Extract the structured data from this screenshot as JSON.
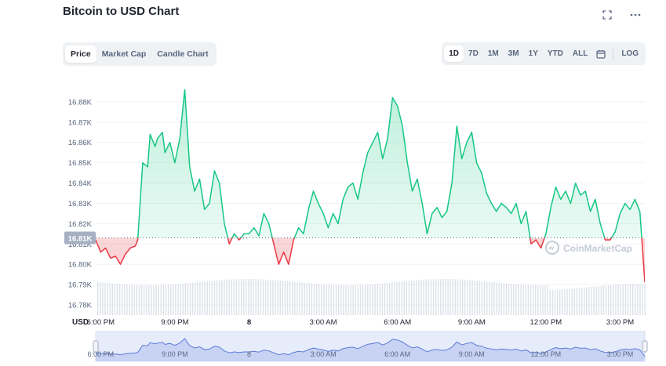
{
  "header": {
    "title": "Bitcoin to USD Chart"
  },
  "icons": {
    "fullscreen": "fullscreen-icon",
    "more": "more-icon",
    "calendar": "calendar-icon"
  },
  "chart_types": {
    "tabs": [
      {
        "label": "Price",
        "active": true
      },
      {
        "label": "Market Cap",
        "active": false
      },
      {
        "label": "Candle Chart",
        "active": false
      }
    ]
  },
  "ranges": {
    "tabs": [
      {
        "label": "1D",
        "active": true
      },
      {
        "label": "7D",
        "active": false
      },
      {
        "label": "1M",
        "active": false
      },
      {
        "label": "3M",
        "active": false
      },
      {
        "label": "1Y",
        "active": false
      },
      {
        "label": "YTD",
        "active": false
      },
      {
        "label": "ALL",
        "active": false
      }
    ],
    "log_label": "LOG"
  },
  "colors": {
    "up": "#16c784",
    "down": "#ea3943",
    "grid": "#eff2f5",
    "navigator": "#5b7ad8"
  },
  "watermark": "CoinMarketCap",
  "chart_data": {
    "type": "area",
    "title": "Bitcoin to USD Chart",
    "currency_label": "USD",
    "current_price_label": "16.81K",
    "reference_value": 16.813,
    "ylim": [
      16.775,
      16.89
    ],
    "y_ticks": [
      {
        "value": 16.88,
        "label": "16.88K"
      },
      {
        "value": 16.87,
        "label": "16.87K"
      },
      {
        "value": 16.86,
        "label": "16.86K"
      },
      {
        "value": 16.85,
        "label": "16.85K"
      },
      {
        "value": 16.84,
        "label": "16.84K"
      },
      {
        "value": 16.83,
        "label": "16.83K"
      },
      {
        "value": 16.82,
        "label": "16.82K"
      },
      {
        "value": 16.81,
        "label": "16.81K"
      },
      {
        "value": 16.8,
        "label": "16.80K"
      },
      {
        "value": 16.79,
        "label": "16.79K"
      },
      {
        "value": 16.78,
        "label": "16.78K"
      }
    ],
    "x_range": [
      17.8,
      40.0
    ],
    "x_ticks": [
      {
        "value": 18,
        "label": "6:00 PM"
      },
      {
        "value": 21,
        "label": "9:00 PM"
      },
      {
        "value": 24,
        "label": "8",
        "bold": true
      },
      {
        "value": 27,
        "label": "3:00 AM"
      },
      {
        "value": 30,
        "label": "6:00 AM"
      },
      {
        "value": 33,
        "label": "9:00 AM"
      },
      {
        "value": 36,
        "label": "12:00 PM"
      },
      {
        "value": 39,
        "label": "3:00 PM"
      }
    ],
    "series": [
      {
        "values": [
          [
            17.8,
            16.812
          ],
          [
            18.0,
            16.806
          ],
          [
            18.2,
            16.808
          ],
          [
            18.4,
            16.803
          ],
          [
            18.6,
            16.804
          ],
          [
            18.8,
            16.8
          ],
          [
            19.0,
            16.805
          ],
          [
            19.2,
            16.808
          ],
          [
            19.4,
            16.809
          ],
          [
            19.5,
            16.812
          ],
          [
            19.7,
            16.85
          ],
          [
            19.9,
            16.848
          ],
          [
            20.0,
            16.864
          ],
          [
            20.2,
            16.858
          ],
          [
            20.3,
            16.862
          ],
          [
            20.5,
            16.865
          ],
          [
            20.6,
            16.855
          ],
          [
            20.8,
            16.86
          ],
          [
            21.0,
            16.85
          ],
          [
            21.2,
            16.862
          ],
          [
            21.4,
            16.886
          ],
          [
            21.6,
            16.848
          ],
          [
            21.8,
            16.836
          ],
          [
            22.0,
            16.842
          ],
          [
            22.2,
            16.827
          ],
          [
            22.4,
            16.83
          ],
          [
            22.6,
            16.846
          ],
          [
            22.8,
            16.84
          ],
          [
            23.0,
            16.82
          ],
          [
            23.2,
            16.81
          ],
          [
            23.4,
            16.815
          ],
          [
            23.6,
            16.812
          ],
          [
            23.8,
            16.815
          ],
          [
            24.0,
            16.815
          ],
          [
            24.2,
            16.818
          ],
          [
            24.4,
            16.814
          ],
          [
            24.6,
            16.825
          ],
          [
            24.8,
            16.82
          ],
          [
            25.0,
            16.81
          ],
          [
            25.2,
            16.8
          ],
          [
            25.4,
            16.806
          ],
          [
            25.6,
            16.8
          ],
          [
            25.8,
            16.812
          ],
          [
            26.0,
            16.818
          ],
          [
            26.2,
            16.815
          ],
          [
            26.4,
            16.827
          ],
          [
            26.6,
            16.836
          ],
          [
            26.8,
            16.83
          ],
          [
            27.0,
            16.825
          ],
          [
            27.2,
            16.818
          ],
          [
            27.4,
            16.825
          ],
          [
            27.6,
            16.82
          ],
          [
            27.8,
            16.832
          ],
          [
            28.0,
            16.838
          ],
          [
            28.2,
            16.84
          ],
          [
            28.4,
            16.832
          ],
          [
            28.6,
            16.845
          ],
          [
            28.8,
            16.855
          ],
          [
            29.0,
            16.86
          ],
          [
            29.2,
            16.865
          ],
          [
            29.4,
            16.852
          ],
          [
            29.6,
            16.862
          ],
          [
            29.8,
            16.882
          ],
          [
            30.0,
            16.878
          ],
          [
            30.2,
            16.868
          ],
          [
            30.4,
            16.85
          ],
          [
            30.6,
            16.836
          ],
          [
            30.8,
            16.842
          ],
          [
            31.0,
            16.83
          ],
          [
            31.2,
            16.815
          ],
          [
            31.4,
            16.825
          ],
          [
            31.6,
            16.828
          ],
          [
            31.8,
            16.823
          ],
          [
            32.0,
            16.826
          ],
          [
            32.2,
            16.84
          ],
          [
            32.4,
            16.868
          ],
          [
            32.6,
            16.852
          ],
          [
            32.8,
            16.86
          ],
          [
            33.0,
            16.865
          ],
          [
            33.2,
            16.85
          ],
          [
            33.4,
            16.845
          ],
          [
            33.6,
            16.835
          ],
          [
            33.8,
            16.83
          ],
          [
            34.0,
            16.826
          ],
          [
            34.2,
            16.83
          ],
          [
            34.4,
            16.828
          ],
          [
            34.6,
            16.825
          ],
          [
            34.8,
            16.83
          ],
          [
            35.0,
            16.82
          ],
          [
            35.2,
            16.826
          ],
          [
            35.4,
            16.81
          ],
          [
            35.6,
            16.812
          ],
          [
            35.8,
            16.808
          ],
          [
            36.0,
            16.815
          ],
          [
            36.2,
            16.828
          ],
          [
            36.4,
            16.838
          ],
          [
            36.6,
            16.832
          ],
          [
            36.8,
            16.836
          ],
          [
            37.0,
            16.83
          ],
          [
            37.2,
            16.84
          ],
          [
            37.4,
            16.834
          ],
          [
            37.6,
            16.836
          ],
          [
            37.8,
            16.826
          ],
          [
            38.0,
            16.832
          ],
          [
            38.2,
            16.82
          ],
          [
            38.4,
            16.812
          ],
          [
            38.6,
            16.812
          ],
          [
            38.8,
            16.816
          ],
          [
            39.0,
            16.825
          ],
          [
            39.2,
            16.83
          ],
          [
            39.4,
            16.827
          ],
          [
            39.6,
            16.832
          ],
          [
            39.8,
            16.826
          ],
          [
            40.0,
            16.791
          ]
        ]
      }
    ],
    "navigator_ticks": [
      {
        "value": 18,
        "label": "6:00 PM"
      },
      {
        "value": 21,
        "label": "9:00 PM"
      },
      {
        "value": 24,
        "label": "8"
      },
      {
        "value": 27,
        "label": "3:00 AM"
      },
      {
        "value": 30,
        "label": "6:00 AM"
      },
      {
        "value": 33,
        "label": "9:00 AM"
      },
      {
        "value": 36,
        "label": "12:00 PM"
      },
      {
        "value": 39,
        "label": "3:00 PM"
      }
    ]
  }
}
